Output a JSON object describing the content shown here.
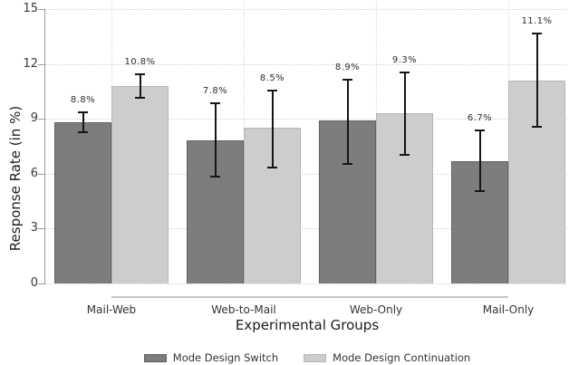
{
  "chart_data": {
    "type": "bar",
    "title": "",
    "xlabel": "Experimental Groups",
    "ylabel": "Response Rate (in %)",
    "categories": [
      "Mail-Web",
      "Web-to-Mail",
      "Web-Only",
      "Mail-Only"
    ],
    "series": [
      {
        "name": "Mode Design Switch",
        "color": "#7d7d7d",
        "border_color": "#5f5f5f",
        "values": [
          8.8,
          7.8,
          8.9,
          6.7
        ],
        "value_labels": [
          "8.8%",
          "7.8%",
          "8.9%",
          "6.7%"
        ],
        "ci_low": [
          8.2,
          5.8,
          6.5,
          5.0
        ],
        "ci_high": [
          9.4,
          9.9,
          11.2,
          8.4
        ]
      },
      {
        "name": "Mode Design Continuation",
        "color": "#cdcdcd",
        "border_color": "#b5b5b5",
        "values": [
          10.8,
          8.5,
          9.3,
          11.1
        ],
        "value_labels": [
          "10.8%",
          "8.5%",
          "9.3%",
          "11.1%"
        ],
        "ci_low": [
          10.1,
          6.3,
          7.0,
          8.5
        ],
        "ci_high": [
          11.5,
          10.6,
          11.6,
          13.7
        ]
      }
    ],
    "ylim": [
      0,
      15
    ],
    "yticks": [
      0,
      3,
      6,
      9,
      12,
      15
    ],
    "grid": true,
    "legend_position": "bottom",
    "error_bar_color": "#161616",
    "axis_line_color": "#9c9c9c",
    "baseline_color": "#c4c4c4"
  }
}
